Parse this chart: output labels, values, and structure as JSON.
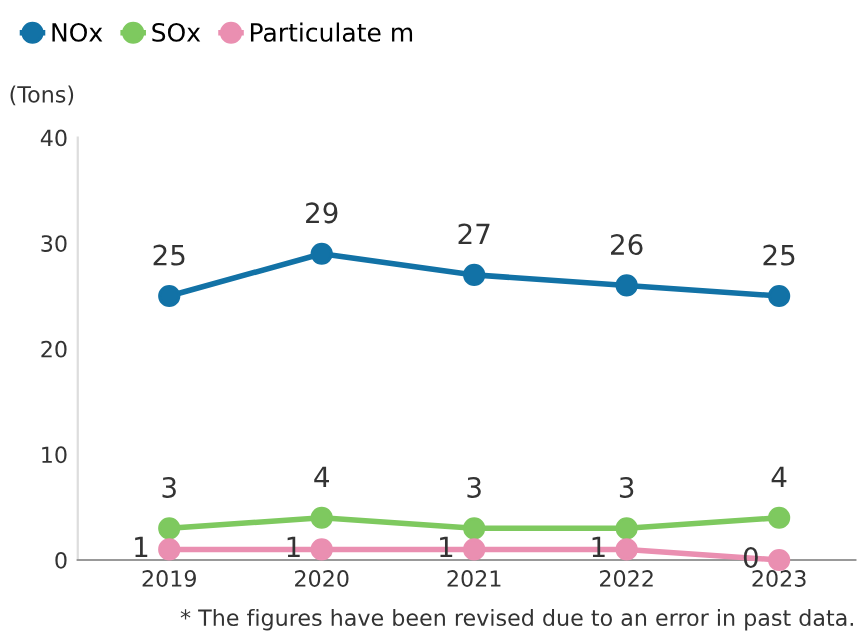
{
  "chart_data": {
    "type": "line",
    "ylabel": "(Tons)",
    "categories": [
      "2019",
      "2020",
      "2021",
      "2022",
      "2023"
    ],
    "series": [
      {
        "name": "NOx",
        "color": "#1272a6",
        "values": [
          25,
          29,
          27,
          26,
          25
        ]
      },
      {
        "name": "SOx",
        "color": "#7ec95f",
        "values": [
          3,
          4,
          3,
          3,
          4
        ]
      },
      {
        "name": "Particulate m",
        "color": "#ea8fb1",
        "values": [
          1,
          1,
          1,
          1,
          0
        ]
      }
    ],
    "ylim": [
      0,
      40
    ],
    "yticks": [
      0,
      10,
      20,
      30,
      40
    ],
    "marker": "circle",
    "line_style": "solid",
    "data_labels": true,
    "grid": false,
    "legend": "top left",
    "annotations": [
      "* The figures have been revised due to an error in past data."
    ]
  }
}
